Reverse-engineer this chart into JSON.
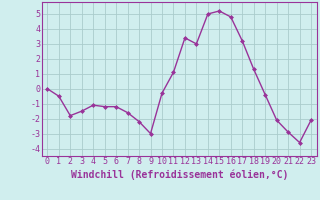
{
  "x": [
    0,
    1,
    2,
    3,
    4,
    5,
    6,
    7,
    8,
    9,
    10,
    11,
    12,
    13,
    14,
    15,
    16,
    17,
    18,
    19,
    20,
    21,
    22,
    23
  ],
  "y": [
    0,
    -0.5,
    -1.8,
    -1.5,
    -1.1,
    -1.2,
    -1.2,
    -1.6,
    -2.2,
    -3.0,
    -0.3,
    1.1,
    3.4,
    3.0,
    5.0,
    5.2,
    4.8,
    3.2,
    1.3,
    -0.4,
    -2.1,
    -2.9,
    -3.6,
    -2.1
  ],
  "line_color": "#993399",
  "marker_color": "#993399",
  "bg_color": "#d0eeee",
  "grid_color": "#aacccc",
  "xlabel": "Windchill (Refroidissement éolien,°C)",
  "xlim": [
    -0.5,
    23.5
  ],
  "ylim": [
    -4.5,
    5.8
  ],
  "yticks": [
    -4,
    -3,
    -2,
    -1,
    0,
    1,
    2,
    3,
    4,
    5
  ],
  "xticks": [
    0,
    1,
    2,
    3,
    4,
    5,
    6,
    7,
    8,
    9,
    10,
    11,
    12,
    13,
    14,
    15,
    16,
    17,
    18,
    19,
    20,
    21,
    22,
    23
  ],
  "tick_color": "#993399",
  "label_color": "#993399",
  "spine_color": "#993399",
  "tick_fontsize": 6.0,
  "xlabel_fontsize": 7.0
}
